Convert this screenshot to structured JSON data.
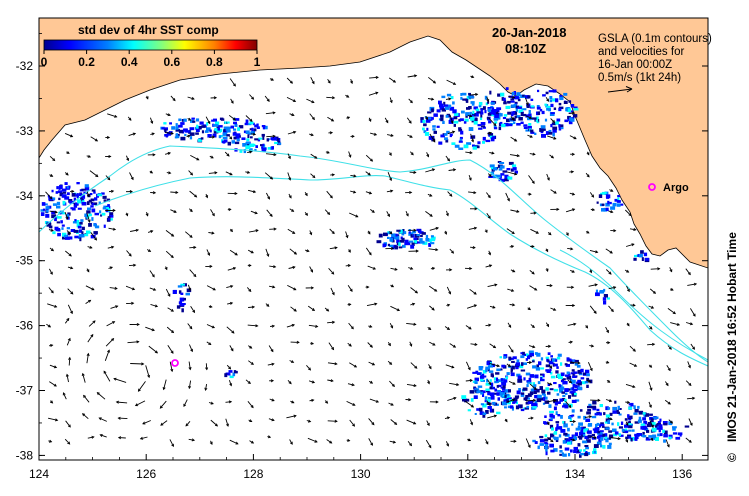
{
  "colorbar": {
    "title": "std dev of 4hr SST comp",
    "ticks": [
      "0",
      "0.2",
      "0.4",
      "0.6",
      "0.8",
      "1"
    ],
    "colors": [
      "#00008f",
      "#0000ff",
      "#0080ff",
      "#00ffff",
      "#80ff80",
      "#ffff00",
      "#ff8000",
      "#ff0000",
      "#800000"
    ]
  },
  "date": {
    "day": "20-Jan-2018",
    "time": "08:10Z"
  },
  "legend": {
    "lines": [
      "GSLA (0.1m contours)",
      "and velocities for",
      "16-Jan 00:00Z",
      "0.5m/s (1kt 24h)"
    ]
  },
  "argo_label": "Argo",
  "credit": "IMOS 21-Jan-2018 16:52 Hobart Time",
  "copyright_symbol": "©",
  "axes": {
    "lon_ticks": [
      "124",
      "126",
      "128",
      "130",
      "132",
      "134",
      "136"
    ],
    "lat_ticks": [
      "-32",
      "-33",
      "-34",
      "-35",
      "-36",
      "-37",
      "-38"
    ]
  },
  "colors": {
    "land": "#ffc896",
    "contour": "#40e0e8",
    "argo": "#ff00ff"
  }
}
